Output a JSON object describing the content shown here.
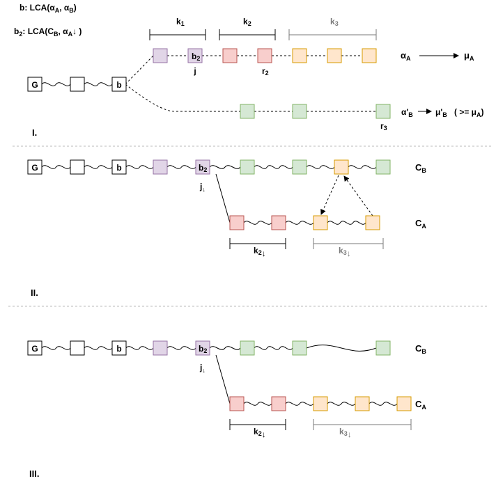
{
  "legend": {
    "b_prefix": "b: LCA(α",
    "b_sub1": "A",
    "b_mid": ", α",
    "b_sub2": "B",
    "b_end": ")",
    "b2_prefix": "b",
    "b2_sub": "2",
    "b2_mid": ": LCA(C",
    "b2_sub2": "B",
    "b2_mid2": ", α",
    "b2_sub3": "A",
    "b2_arrow": "↓",
    "b2_end": " )"
  },
  "colors": {
    "white": "#ffffff",
    "purple": "#e1d5e7",
    "purple_stroke": "#9673a6",
    "red": "#f8cecc",
    "red_stroke": "#b85450",
    "orange": "#ffe6cc",
    "orange_stroke": "#d79b00",
    "green": "#d5e8d4",
    "green_stroke": "#82b366",
    "grey": "#7a7a7a"
  },
  "panel1": {
    "label": "I.",
    "node_G": "G",
    "node_b": "b",
    "node_b2": "b",
    "node_b2_sub": "2",
    "j": "j",
    "r2": "r",
    "r2_sub": "2",
    "r3": "r",
    "r3_sub": "3",
    "k1": "k",
    "k1_sub": "1",
    "k2": "k",
    "k2_sub": "2",
    "k3": "k",
    "k3_sub": "3",
    "alphaA": "α",
    "alphaA_sub": "A",
    "muA": "μ",
    "muA_sub": "A",
    "alphaB": "α'",
    "alphaB_sub": "B",
    "muB": "μ'",
    "muB_sub": "B",
    "cond_open": "( >= μ",
    "cond_sub": "A",
    "cond_close": ")"
  },
  "panel2": {
    "label": "II.",
    "node_G": "G",
    "node_b": "b",
    "node_b2": "b",
    "node_b2_sub": "2",
    "j": "j",
    "j_arrow": "↓",
    "cB": "C",
    "cB_sub": "B",
    "cA": "C",
    "cA_sub": "A",
    "k2": "k",
    "k2_sub": "2",
    "k2_arrow": "↓",
    "k3": "k",
    "k3_sub": "3",
    "k3_arrow": "↓"
  },
  "panel3": {
    "label": "III.",
    "node_G": "G",
    "node_b": "b",
    "node_b2": "b",
    "node_b2_sub": "2",
    "j": "j",
    "j_arrow": "↓",
    "cB": "C",
    "cB_sub": "B",
    "cA": "C",
    "cA_sub": "A",
    "k2": "k",
    "k2_sub": "2",
    "k2_arrow": "↓",
    "k3": "k",
    "k3_sub": "3",
    "k3_arrow": "↓"
  }
}
